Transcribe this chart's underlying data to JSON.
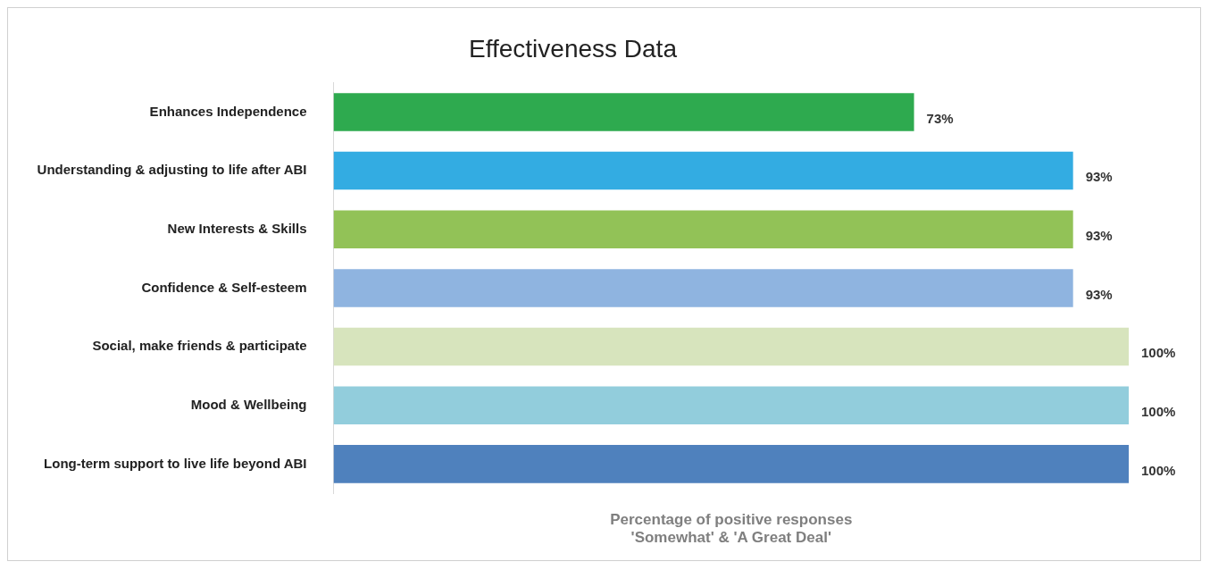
{
  "chart_data": {
    "type": "bar",
    "orientation": "horizontal",
    "title": "Effectiveness Data",
    "xlabel": "Percentage of positive responses\n'Somewhat' & 'A Great Deal'",
    "categories": [
      "Enhances Independence",
      "Understanding & adjusting to life after ABI",
      "New Interests & Skills",
      "Confidence & Self-esteem",
      "Social, make friends & participate",
      "Mood & Wellbeing",
      "Long-term support to live life beyond ABI"
    ],
    "values": [
      73,
      93,
      93,
      93,
      100,
      100,
      100
    ],
    "colors": [
      "#2eaa4f",
      "#33ace2",
      "#92c257",
      "#8fb4e0",
      "#d7e4bd",
      "#92cddc",
      "#4f81bd"
    ],
    "value_labels": [
      "73%",
      "93%",
      "93%",
      "93%",
      "100%",
      "100%",
      "100%"
    ],
    "grid": false,
    "legend": false
  }
}
